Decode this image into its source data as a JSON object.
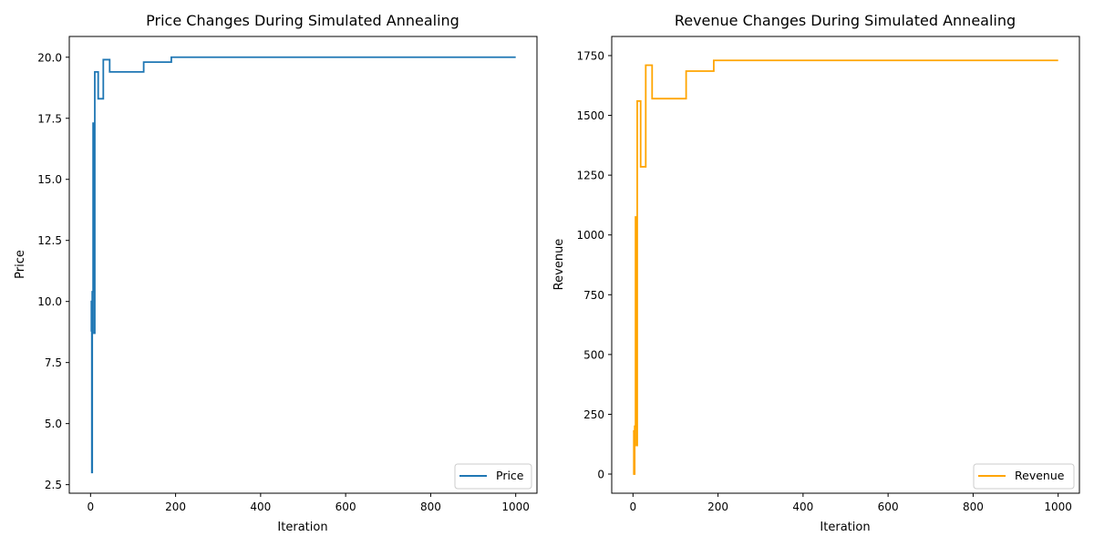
{
  "chart_data": [
    {
      "type": "line",
      "title": "Price Changes During Simulated Annealing",
      "xlabel": "Iteration",
      "ylabel": "Price",
      "xlim": [
        -50,
        1050
      ],
      "ylim": [
        2.15,
        20.85
      ],
      "x_ticks": [
        0,
        200,
        400,
        600,
        800,
        1000
      ],
      "x_tick_labels": [
        "0",
        "200",
        "400",
        "600",
        "800",
        "1000"
      ],
      "y_ticks": [
        2.5,
        5.0,
        7.5,
        10.0,
        12.5,
        15.0,
        17.5,
        20.0
      ],
      "y_tick_labels": [
        "2.5",
        "5.0",
        "7.5",
        "10.0",
        "12.5",
        "15.0",
        "17.5",
        "20.0"
      ],
      "legend": {
        "position": "lower right",
        "entries": [
          "Price"
        ]
      },
      "grid": false,
      "series": [
        {
          "name": "Price",
          "color": "#1f77b4",
          "step": true,
          "points": [
            [
              0,
              10.0
            ],
            [
              2,
              8.8
            ],
            [
              3,
              3.0
            ],
            [
              4,
              10.4
            ],
            [
              6,
              17.3
            ],
            [
              8,
              8.7
            ],
            [
              10,
              19.4
            ],
            [
              18,
              18.3
            ],
            [
              30,
              19.9
            ],
            [
              45,
              19.4
            ],
            [
              125,
              19.8
            ],
            [
              190,
              20.0
            ],
            [
              1000,
              20.0
            ]
          ]
        }
      ]
    },
    {
      "type": "line",
      "title": "Revenue Changes During Simulated Annealing",
      "xlabel": "Iteration",
      "ylabel": "Revenue",
      "xlim": [
        -50,
        1050
      ],
      "ylim": [
        -80,
        1830
      ],
      "x_ticks": [
        0,
        200,
        400,
        600,
        800,
        1000
      ],
      "x_tick_labels": [
        "0",
        "200",
        "400",
        "600",
        "800",
        "1000"
      ],
      "y_ticks": [
        0,
        250,
        500,
        750,
        1000,
        1250,
        1500,
        1750
      ],
      "y_tick_labels": [
        "0",
        "250",
        "500",
        "750",
        "1000",
        "1250",
        "1500",
        "1750"
      ],
      "legend": {
        "position": "lower right",
        "entries": [
          "Revenue"
        ]
      },
      "grid": false,
      "series": [
        {
          "name": "Revenue",
          "color": "#ffa500",
          "step": true,
          "points": [
            [
              0,
              180
            ],
            [
              2,
              0
            ],
            [
              4,
              200
            ],
            [
              6,
              1075
            ],
            [
              8,
              120
            ],
            [
              10,
              1560
            ],
            [
              18,
              1285
            ],
            [
              30,
              1710
            ],
            [
              45,
              1570
            ],
            [
              125,
              1685
            ],
            [
              190,
              1730
            ],
            [
              1000,
              1730
            ]
          ]
        }
      ]
    }
  ]
}
